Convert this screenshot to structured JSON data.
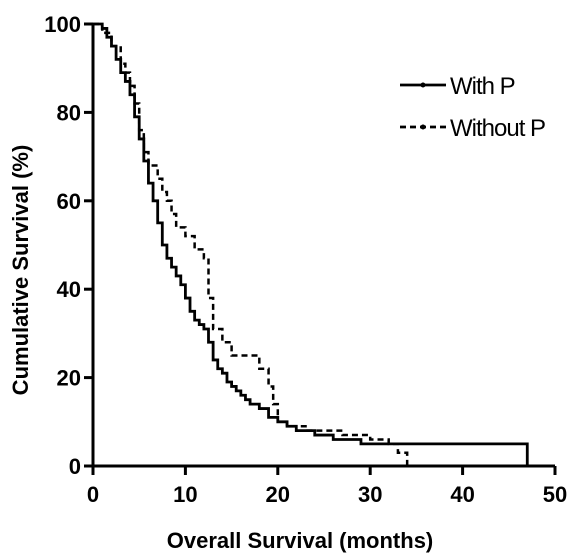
{
  "chart_data": {
    "type": "line",
    "title": "",
    "xlabel": "Overall Survival (months)",
    "ylabel": "Cumulative Survival (%)",
    "xlim": [
      0,
      50
    ],
    "ylim": [
      0,
      100
    ],
    "xticks": [
      "0",
      "10",
      "20",
      "30",
      "40",
      "50"
    ],
    "yticks": [
      "0",
      "20",
      "40",
      "60",
      "80",
      "100"
    ],
    "grid": false,
    "legend_position": "top-right",
    "series": [
      {
        "name": "With P",
        "style": "solid",
        "color": "#000000",
        "step": true,
        "points": [
          [
            0,
            100
          ],
          [
            0.5,
            100
          ],
          [
            1,
            99
          ],
          [
            1.5,
            97
          ],
          [
            2,
            95
          ],
          [
            2.5,
            92
          ],
          [
            3,
            89
          ],
          [
            3.5,
            87
          ],
          [
            4,
            84
          ],
          [
            4.5,
            79
          ],
          [
            5,
            74
          ],
          [
            5.5,
            69
          ],
          [
            6,
            64
          ],
          [
            6.5,
            60
          ],
          [
            7,
            55
          ],
          [
            7.5,
            50
          ],
          [
            8,
            47
          ],
          [
            8.5,
            45
          ],
          [
            9,
            43
          ],
          [
            9.5,
            41
          ],
          [
            10,
            38
          ],
          [
            10.5,
            35
          ],
          [
            11,
            33
          ],
          [
            11.5,
            32
          ],
          [
            12,
            31
          ],
          [
            12.5,
            28
          ],
          [
            13,
            24
          ],
          [
            13.5,
            22
          ],
          [
            14,
            21
          ],
          [
            14.5,
            19
          ],
          [
            15,
            18
          ],
          [
            15.5,
            17
          ],
          [
            16,
            16
          ],
          [
            16.5,
            15
          ],
          [
            17,
            14
          ],
          [
            18,
            13
          ],
          [
            19,
            11
          ],
          [
            20,
            10
          ],
          [
            21,
            9
          ],
          [
            22,
            8
          ],
          [
            24,
            7
          ],
          [
            26,
            6
          ],
          [
            29,
            5
          ],
          [
            34,
            5
          ],
          [
            37.5,
            5
          ],
          [
            40,
            5
          ],
          [
            45,
            5
          ],
          [
            47,
            5
          ],
          [
            47,
            0
          ]
        ]
      },
      {
        "name": "Without P",
        "style": "dashed",
        "color": "#000000",
        "step": true,
        "points": [
          [
            0,
            100
          ],
          [
            1,
            98
          ],
          [
            2,
            95
          ],
          [
            3,
            91
          ],
          [
            3.5,
            89
          ],
          [
            4,
            86
          ],
          [
            4.5,
            82
          ],
          [
            5,
            76
          ],
          [
            5.5,
            71
          ],
          [
            6,
            68
          ],
          [
            7,
            65
          ],
          [
            7.5,
            62
          ],
          [
            8,
            60
          ],
          [
            8.5,
            57
          ],
          [
            9,
            54
          ],
          [
            10,
            52
          ],
          [
            11,
            49
          ],
          [
            12,
            47
          ],
          [
            12.5,
            38
          ],
          [
            13,
            31
          ],
          [
            14,
            28
          ],
          [
            15,
            25
          ],
          [
            17,
            25
          ],
          [
            18,
            22
          ],
          [
            19,
            18
          ],
          [
            19.5,
            14
          ],
          [
            20,
            10
          ],
          [
            21,
            9
          ],
          [
            23,
            8
          ],
          [
            25,
            8
          ],
          [
            27,
            7
          ],
          [
            30,
            6
          ],
          [
            32,
            5
          ],
          [
            33,
            3
          ],
          [
            34,
            3
          ],
          [
            34,
            0
          ]
        ]
      }
    ]
  }
}
